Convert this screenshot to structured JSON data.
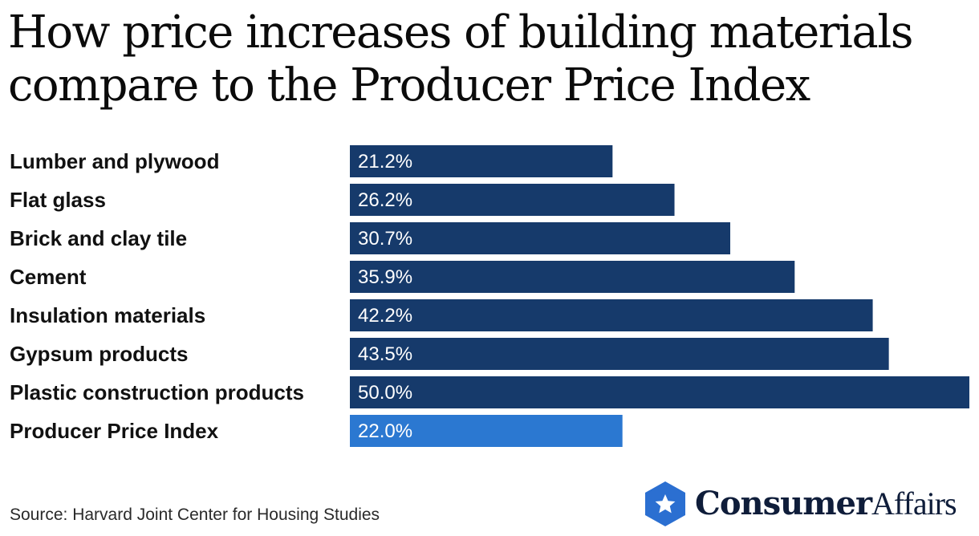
{
  "title_line1": "How price increases of building materials",
  "title_line2": "compare to the Producer Price Index",
  "source": "Source: Harvard Joint Center for Housing Studies",
  "logo": {
    "brand_part1": "Consumer",
    "brand_part2": "Affairs",
    "icon": "star-hexagon-icon"
  },
  "colors": {
    "bar": "#163a6b",
    "highlight": "#2b78d1",
    "logo": "#2b6fd1"
  },
  "chart_data": {
    "type": "bar",
    "orientation": "horizontal",
    "title": "How price increases of building materials compare to the Producer Price Index",
    "xlabel": "",
    "ylabel": "",
    "xlim": [
      0,
      50
    ],
    "grid": false,
    "categories": [
      "Lumber and plywood",
      "Flat glass",
      "Brick and clay tile",
      "Cement",
      "Insulation materials",
      "Gypsum products",
      "Plastic construction products",
      "Producer Price Index"
    ],
    "values": [
      21.2,
      26.2,
      30.7,
      35.9,
      42.2,
      43.5,
      50.0,
      22.0
    ],
    "value_labels": [
      "21.2%",
      "26.2%",
      "30.7%",
      "35.9%",
      "42.2%",
      "43.5%",
      "50.0%",
      "22.0%"
    ],
    "highlighted_category": "Producer Price Index"
  }
}
